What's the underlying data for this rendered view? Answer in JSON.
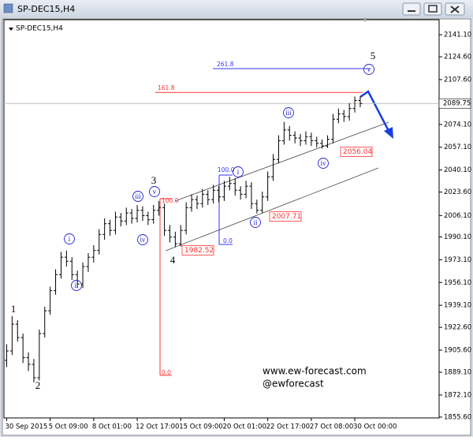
{
  "window": {
    "title": "SP-DEC15,H4"
  },
  "chart_data": {
    "type": "ohlc",
    "title": "SP-DEC15,H4",
    "color": "#000000",
    "categories": [
      "30 Sep 2015",
      null,
      null,
      null,
      null,
      null,
      null,
      null,
      "5 Oct 09:00",
      null,
      null,
      null,
      null,
      null,
      null,
      null,
      "8 Oct 01:00",
      null,
      null,
      null,
      null,
      null,
      null,
      null,
      "12 Oct 17:00",
      null,
      null,
      null,
      null,
      null,
      null,
      null,
      "15 Oct 09:00",
      null,
      null,
      null,
      null,
      null,
      null,
      null,
      "20 Oct 01:00",
      null,
      null,
      null,
      null,
      null,
      null,
      null,
      "22 Oct 17:00",
      null,
      null,
      null,
      null,
      null,
      null,
      null,
      "27 Oct 08:00",
      null,
      null,
      null,
      null,
      null,
      null,
      null,
      "30 Oct 00:00",
      null
    ],
    "open": [
      1898,
      1905,
      1925,
      1915,
      1900,
      1895,
      1885,
      1918,
      1935,
      1950,
      1962,
      1975,
      1972,
      1962,
      1955,
      1968,
      1975,
      1980,
      1992,
      2000,
      1995,
      2005,
      2002,
      2008,
      2004,
      2010,
      2006,
      2003,
      2010,
      2012,
      1995,
      1990,
      1985,
      1995,
      2012,
      2018,
      2015,
      2022,
      2018,
      2025,
      2020,
      2028,
      2030,
      2025,
      2022,
      2028,
      2015,
      2010,
      2020,
      2035,
      2048,
      2062,
      2070,
      2066,
      2064,
      2062,
      2065,
      2062,
      2060,
      2058,
      2063,
      2078,
      2082,
      2080,
      2086,
      2092
    ],
    "high": [
      1910,
      1931,
      1928,
      1918,
      1904,
      1899,
      1921,
      1938,
      1953,
      1966,
      1979,
      1980,
      1975,
      1965,
      1971,
      1978,
      1984,
      1996,
      2004,
      2003,
      2009,
      2008,
      2012,
      2011,
      2014,
      2013,
      2009,
      2014,
      2017,
      2015,
      1999,
      1994,
      1999,
      2016,
      2022,
      2021,
      2026,
      2025,
      2029,
      2028,
      2032,
      2035,
      2034,
      2028,
      2032,
      2031,
      2018,
      2024,
      2039,
      2052,
      2066,
      2076,
      2073,
      2069,
      2067,
      2069,
      2068,
      2065,
      2063,
      2066,
      2082,
      2086,
      2085,
      2090,
      2095,
      2095
    ],
    "low": [
      1893,
      1902,
      1912,
      1896,
      1890,
      1881.5,
      1883,
      1915,
      1932,
      1947,
      1959,
      1968,
      1958,
      1952,
      1952,
      1964,
      1971,
      1977,
      1988,
      1991,
      1992,
      1998,
      1999,
      2000,
      2001,
      2002,
      1999,
      2000,
      2006,
      1991,
      1986,
      1982.52,
      1983,
      1992,
      2009,
      2011,
      2012,
      2014,
      2015,
      2016,
      2017,
      2025,
      2021,
      2018,
      2019,
      2011,
      2007.71,
      2008,
      2017,
      2032,
      2045,
      2059,
      2062,
      2060,
      2058,
      2059,
      2058,
      2057,
      2056.04,
      2056.5,
      2060,
      2075,
      2076,
      2077,
      2083,
      2087
    ],
    "close": [
      1905,
      1925,
      1915,
      1900,
      1895,
      1885,
      1918,
      1935,
      1950,
      1962,
      1975,
      1972,
      1962,
      1955,
      1968,
      1975,
      1980,
      1992,
      2000,
      1995,
      2005,
      2002,
      2008,
      2004,
      2010,
      2006,
      2003,
      2010,
      2012,
      1995,
      1990,
      1985,
      1995,
      2012,
      2018,
      2015,
      2022,
      2018,
      2025,
      2020,
      2028,
      2030,
      2025,
      2022,
      2028,
      2015,
      2010,
      2020,
      2035,
      2048,
      2062,
      2070,
      2066,
      2064,
      2062,
      2065,
      2062,
      2060,
      2058,
      2063,
      2078,
      2082,
      2080,
      2086,
      2092,
      2089.75
    ],
    "ylim": [
      1855.0,
      2152.3
    ],
    "yticks": [
      {
        "value": 2141.1,
        "label": "2141.10"
      },
      {
        "value": 2124.6,
        "label": "2124.60"
      },
      {
        "value": 2107.6,
        "label": "2107.60"
      },
      {
        "value": 2074.1,
        "label": "2074.10"
      },
      {
        "value": 2057.1,
        "label": "2057.10"
      },
      {
        "value": 2040.1,
        "label": "2040.10"
      },
      {
        "value": 2023.6,
        "label": "2023.60"
      },
      {
        "value": 2006.1,
        "label": "2006.10"
      },
      {
        "value": 1990.1,
        "label": "1990.10"
      },
      {
        "value": 1973.1,
        "label": "1973.10"
      },
      {
        "value": 1956.1,
        "label": "1956.10"
      },
      {
        "value": 1939.1,
        "label": "1939.10"
      },
      {
        "value": 1922.6,
        "label": "1922.60"
      },
      {
        "value": 1905.6,
        "label": "1905.60"
      },
      {
        "value": 1889.1,
        "label": "1889.10"
      },
      {
        "value": 1872.1,
        "label": "1872.10"
      },
      {
        "value": 1855.6,
        "label": "1855.60"
      }
    ],
    "current_price": 2089.75,
    "price_labels": [
      1982.52,
      2007.71,
      2056.04
    ],
    "fibs": [
      {
        "color": "#ff3333",
        "levels": [
          {
            "label": "100.0",
            "value": 2018.7
          },
          {
            "label": "0.0",
            "value": 1886.8
          },
          {
            "label": "161.8",
            "value": 2098
          }
        ]
      },
      {
        "color": "#3333ff",
        "levels": [
          {
            "label": "100.0",
            "value": 2036.3
          },
          {
            "label": "0.0",
            "value": 1984.5
          },
          {
            "label": "261.8",
            "value": 2115.8
          }
        ]
      }
    ],
    "wave_labels": [
      "1",
      "2",
      "3",
      "4",
      "5"
    ],
    "subwave_labels": [
      "i",
      "ii",
      "iii",
      "iv",
      "v",
      "i",
      "ii",
      "iii",
      "iv",
      "v"
    ],
    "watermark": [
      "www.ew-forecast.com",
      "@ewforecast"
    ]
  }
}
